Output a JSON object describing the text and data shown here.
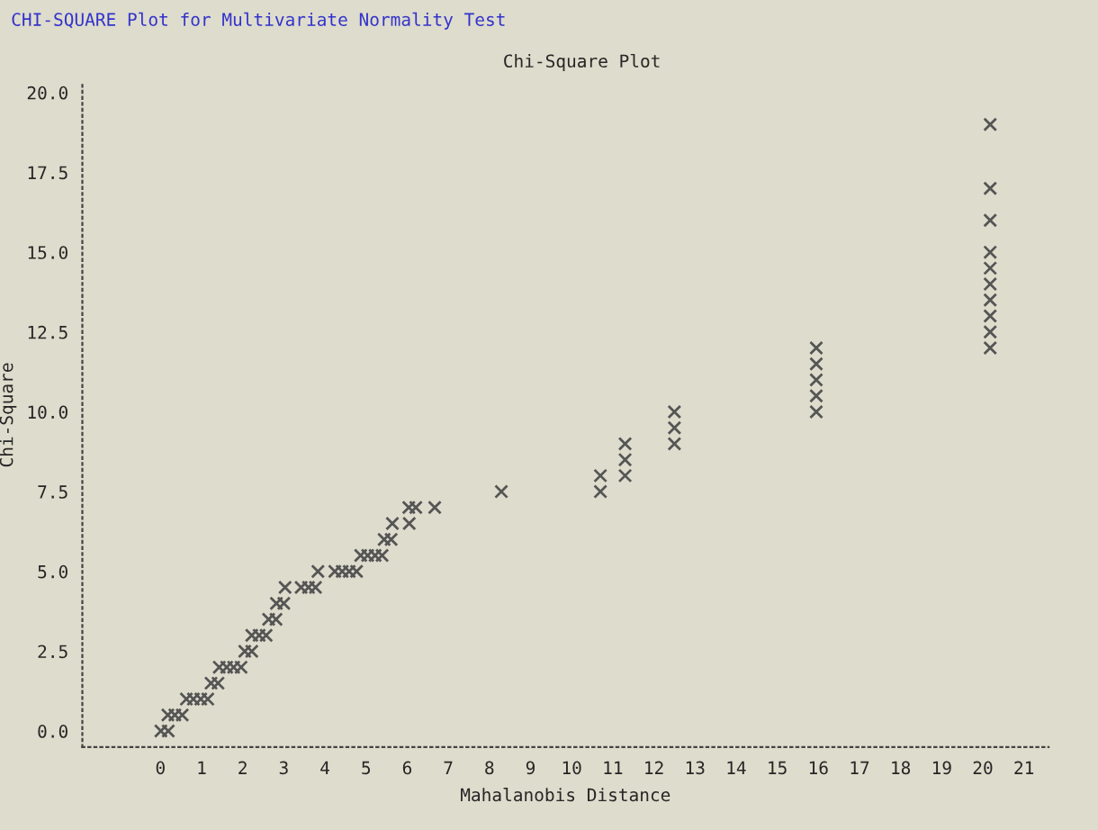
{
  "chart_data": {
    "type": "scatter",
    "title": "CHI-SQUARE Plot for Multivariate Normality Test",
    "subtitle": "Chi-Square Plot",
    "xlabel": "Mahalanobis Distance",
    "ylabel": "Chi-Square",
    "marker": "cross",
    "grid": false,
    "series": [
      {
        "color": "#555555",
        "x": [
          0.01,
          0.19,
          0.18,
          0.35,
          0.53,
          0.63,
          0.8,
          0.98,
          1.15,
          1.23,
          1.4,
          1.43,
          1.61,
          1.78,
          1.96,
          2.05,
          2.22,
          2.22,
          2.4,
          2.57,
          2.63,
          2.81,
          2.82,
          3.0,
          3.03,
          3.42,
          3.6,
          3.77,
          3.83,
          4.24,
          4.42,
          4.59,
          4.77,
          4.87,
          5.04,
          5.22,
          5.39,
          5.44,
          5.61,
          5.64,
          6.05,
          6.04,
          6.21,
          6.67,
          8.29,
          10.7,
          10.7,
          11.3,
          11.3,
          11.3,
          12.5,
          12.5,
          12.5,
          15.95,
          15.95,
          15.95,
          15.95,
          15.95,
          20.18,
          20.18,
          20.18,
          20.18,
          20.18,
          20.18,
          20.18,
          20.18,
          20.18,
          20.18
        ],
        "values": [
          0.0,
          0.0,
          0.5,
          0.5,
          0.5,
          1.0,
          1.0,
          1.0,
          1.0,
          1.5,
          1.5,
          2.0,
          2.0,
          2.0,
          2.0,
          2.5,
          2.5,
          3.0,
          3.0,
          3.0,
          3.5,
          3.5,
          4.0,
          4.0,
          4.5,
          4.5,
          4.5,
          4.5,
          5.0,
          5.0,
          5.0,
          5.0,
          5.0,
          5.5,
          5.5,
          5.5,
          5.5,
          6.0,
          6.0,
          6.5,
          6.5,
          7.0,
          7.0,
          7.0,
          7.5,
          7.5,
          8.0,
          8.0,
          8.5,
          9.0,
          9.0,
          9.5,
          10.0,
          10.0,
          10.5,
          11.0,
          11.5,
          12.0,
          12.0,
          12.5,
          13.0,
          13.5,
          14.0,
          14.5,
          15.0,
          16.0,
          17.0,
          19.0
        ]
      }
    ],
    "xlim": [
      -1.9,
      21.6
    ],
    "ylim": [
      -0.5,
      20.3
    ],
    "xticks": [
      0,
      1,
      2,
      3,
      4,
      5,
      6,
      7,
      8,
      9,
      10,
      11,
      12,
      13,
      14,
      15,
      16,
      17,
      18,
      19,
      20,
      21
    ],
    "yticks": [
      {
        "value": 0,
        "label": "0.0"
      },
      {
        "value": 2.5,
        "label": "2.5"
      },
      {
        "value": 5,
        "label": "5.0"
      },
      {
        "value": 7.5,
        "label": "7.5"
      },
      {
        "value": 10,
        "label": "10.0"
      },
      {
        "value": 12.5,
        "label": "12.5"
      },
      {
        "value": 15,
        "label": "15.0"
      },
      {
        "value": 17.5,
        "label": "17.5"
      },
      {
        "value": 20,
        "label": "20.0"
      }
    ]
  }
}
